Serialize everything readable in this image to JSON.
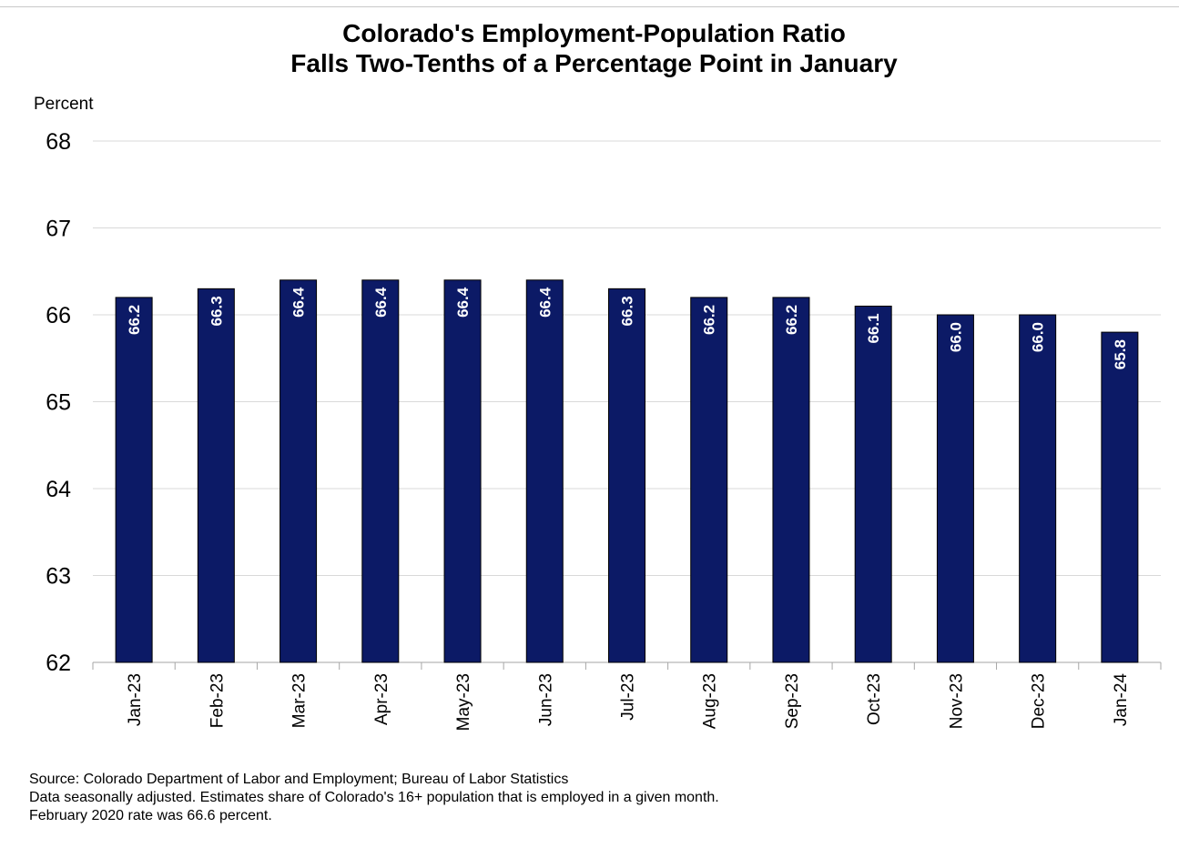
{
  "title_line1": "Colorado's Employment-Population Ratio",
  "title_line2": "Falls Two-Tenths of a Percentage Point in January",
  "footnotes": {
    "source": "Source: Colorado Department of Labor and Employment; Bureau of Labor Statistics",
    "note": "Data seasonally adjusted. Estimates share of Colorado's 16+ population that is employed in a given month.",
    "feb2020": "February 2020 rate was 66.6 percent."
  },
  "colors": {
    "bar": "#0c1a66",
    "bar_label": "#ffffff",
    "gridline": "#d9d9d9",
    "axis": "#a6a6a6"
  },
  "chart_data": {
    "type": "bar",
    "title": "Colorado's Employment-Population Ratio Falls Two-Tenths of a Percentage Point in January",
    "ylabel": "Percent",
    "xlabel": "",
    "ylim": [
      62,
      68
    ],
    "yticks": [
      62,
      63,
      64,
      65,
      66,
      67,
      68
    ],
    "grid": true,
    "categories": [
      "Jan-23",
      "Feb-23",
      "Mar-23",
      "Apr-23",
      "May-23",
      "Jun-23",
      "Jul-23",
      "Aug-23",
      "Sep-23",
      "Oct-23",
      "Nov-23",
      "Dec-23",
      "Jan-24"
    ],
    "values": [
      66.2,
      66.3,
      66.4,
      66.4,
      66.4,
      66.4,
      66.3,
      66.2,
      66.2,
      66.1,
      66.0,
      66.0,
      65.8
    ],
    "data_labels": [
      "66.2",
      "66.3",
      "66.4",
      "66.4",
      "66.4",
      "66.4",
      "66.3",
      "66.2",
      "66.2",
      "66.1",
      "66.0",
      "66.0",
      "65.8"
    ]
  }
}
